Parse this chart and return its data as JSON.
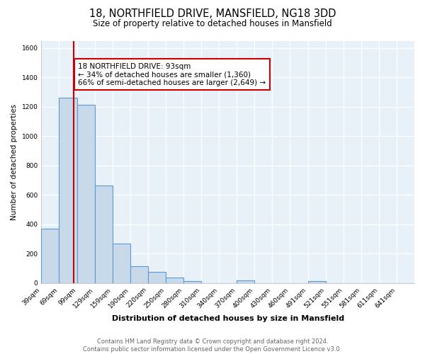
{
  "title": "18, NORTHFIELD DRIVE, MANSFIELD, NG18 3DD",
  "subtitle": "Size of property relative to detached houses in Mansfield",
  "xlabel": "Distribution of detached houses by size in Mansfield",
  "ylabel": "Number of detached properties",
  "categories": [
    "39sqm",
    "69sqm",
    "99sqm",
    "129sqm",
    "159sqm",
    "190sqm",
    "220sqm",
    "250sqm",
    "280sqm",
    "310sqm",
    "340sqm",
    "370sqm",
    "400sqm",
    "430sqm",
    "460sqm",
    "491sqm",
    "521sqm",
    "551sqm",
    "581sqm",
    "611sqm",
    "641sqm"
  ],
  "values": [
    370,
    1260,
    1215,
    665,
    270,
    115,
    75,
    38,
    15,
    0,
    0,
    18,
    0,
    0,
    0,
    15,
    0,
    0,
    0,
    0,
    0
  ],
  "bar_color": "#c8d9ea",
  "bar_edge_color": "#5b9bd5",
  "property_line_x": 93,
  "property_line_color": "#cc0000",
  "annotation_text": "18 NORTHFIELD DRIVE: 93sqm\n← 34% of detached houses are smaller (1,360)\n66% of semi-detached houses are larger (2,649) →",
  "annotation_box_color": "#ffffff",
  "annotation_box_edge": "#cc0000",
  "ylim": [
    0,
    1650
  ],
  "yticks": [
    0,
    200,
    400,
    600,
    800,
    1000,
    1200,
    1400,
    1600
  ],
  "footer_text": "Contains HM Land Registry data © Crown copyright and database right 2024.\nContains public sector information licensed under the Open Government Licence v3.0.",
  "fig_background_color": "#ffffff",
  "plot_bg_color": "#e8f0f8",
  "grid_color": "#ffffff",
  "bin_width": 30,
  "title_fontsize": 10.5,
  "subtitle_fontsize": 8.5,
  "ylabel_fontsize": 7.5,
  "xlabel_fontsize": 8,
  "tick_fontsize": 6.5,
  "footer_fontsize": 6,
  "annotation_fontsize": 7.5
}
